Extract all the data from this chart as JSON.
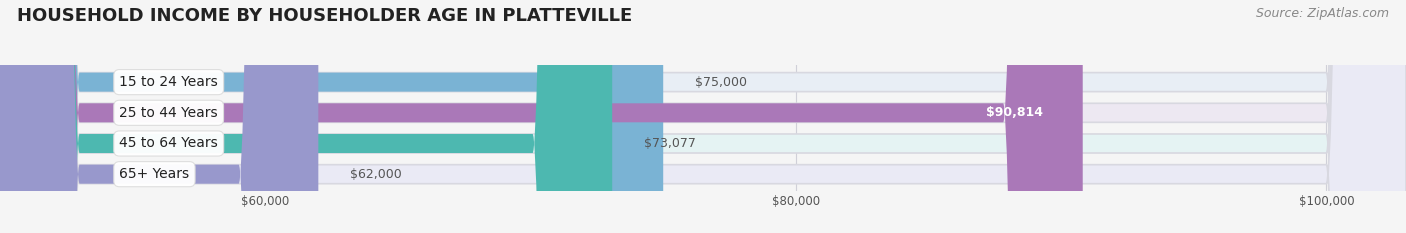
{
  "title": "HOUSEHOLD INCOME BY HOUSEHOLDER AGE IN PLATTEVILLE",
  "source": "Source: ZipAtlas.com",
  "categories": [
    "15 to 24 Years",
    "25 to 44 Years",
    "45 to 64 Years",
    "65+ Years"
  ],
  "values": [
    75000,
    90814,
    73077,
    62000
  ],
  "value_labels": [
    "$75,000",
    "$90,814",
    "$73,077",
    "$62,000"
  ],
  "bar_colors": [
    "#7ab3d4",
    "#aa78b8",
    "#4db8b0",
    "#9898cc"
  ],
  "bar_bg_colors": [
    "#e8eef5",
    "#ede8f2",
    "#e5f3f3",
    "#eaeaf5"
  ],
  "xmin": 50000,
  "xmax": 103000,
  "xticks": [
    60000,
    80000,
    100000
  ],
  "xtick_labels": [
    "$60,000",
    "$80,000",
    "$100,000"
  ],
  "title_fontsize": 13,
  "source_fontsize": 9,
  "label_fontsize": 10,
  "value_fontsize": 9,
  "bar_height": 0.62,
  "fig_width": 14.06,
  "fig_height": 2.33,
  "background_color": "#f5f5f5",
  "separator_color": "#ffffff",
  "grid_color": "#d0d0d8"
}
